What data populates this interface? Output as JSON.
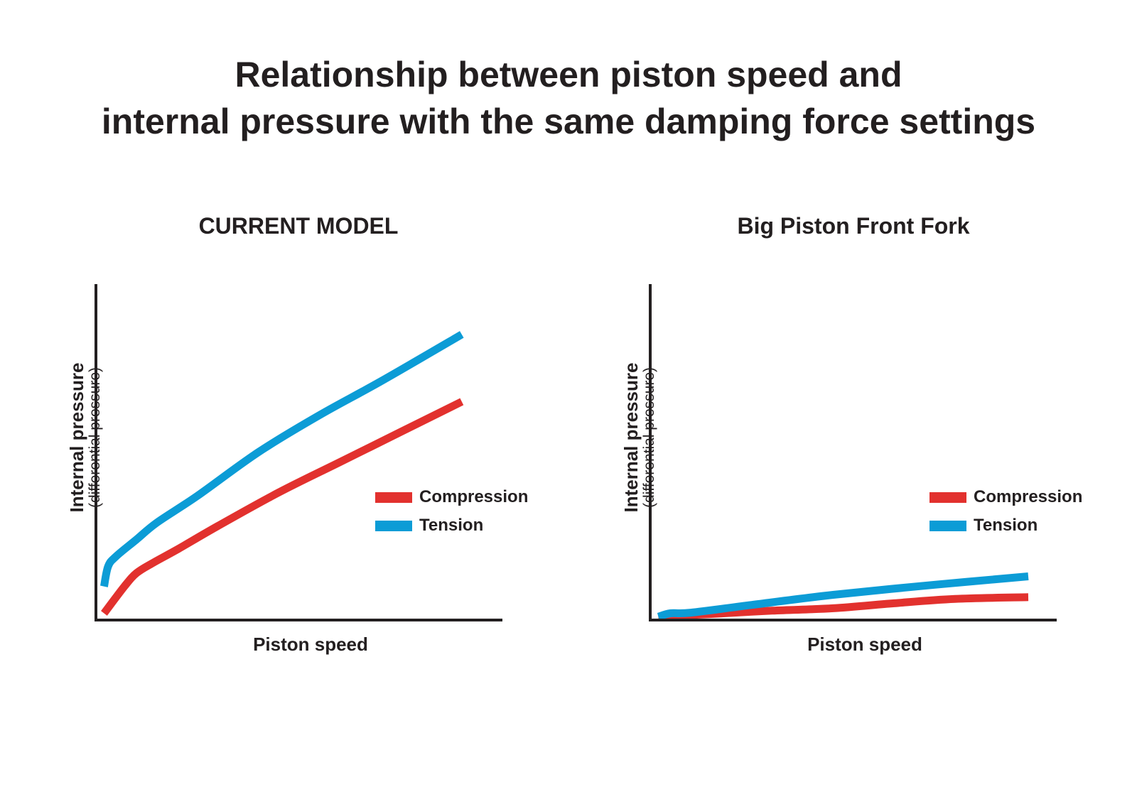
{
  "title_lines": [
    "Relationship between piston speed and",
    "internal pressure with the same damping force settings"
  ],
  "colors": {
    "compression": "#e2312e",
    "tension": "#0c9cd6",
    "text": "#231f20"
  },
  "chart_data": [
    {
      "type": "line",
      "title": "CURRENT MODEL",
      "xlabel": "Piston speed",
      "ylabel": "Internal pressure",
      "ylabel_sub": "(differential pressure)",
      "xlim": [
        0,
        100
      ],
      "ylim": [
        0,
        100
      ],
      "grid": false,
      "legend_position": "right",
      "series": [
        {
          "name": "Compression",
          "color": "#e2312e",
          "x": [
            2,
            7,
            10,
            14,
            20,
            30,
            45,
            60,
            75,
            90
          ],
          "y": [
            2,
            10,
            14,
            17,
            21,
            28,
            38,
            47,
            56,
            65
          ]
        },
        {
          "name": "Tension",
          "color": "#0c9cd6",
          "x": [
            2,
            3,
            5,
            10,
            15,
            25,
            40,
            55,
            70,
            90
          ],
          "y": [
            10,
            16,
            19,
            24,
            29,
            37,
            50,
            61,
            71,
            85
          ]
        }
      ]
    },
    {
      "type": "line",
      "title": "Big Piston Front Fork",
      "xlabel": "Piston speed",
      "ylabel": "Internal pressure",
      "ylabel_sub": "(differential pressure)",
      "xlim": [
        0,
        100
      ],
      "ylim": [
        0,
        100
      ],
      "grid": false,
      "legend_position": "right",
      "series": [
        {
          "name": "Compression",
          "color": "#e2312e",
          "x": [
            2,
            15,
            30,
            45,
            60,
            75,
            93
          ],
          "y": [
            1,
            1.8,
            2.8,
            3.5,
            5,
            6.3,
            6.8
          ]
        },
        {
          "name": "Tension",
          "color": "#0c9cd6",
          "x": [
            2,
            5,
            10,
            25,
            45,
            70,
            93
          ],
          "y": [
            1,
            2,
            2.2,
            4.5,
            7.5,
            10.5,
            13
          ]
        }
      ]
    }
  ]
}
